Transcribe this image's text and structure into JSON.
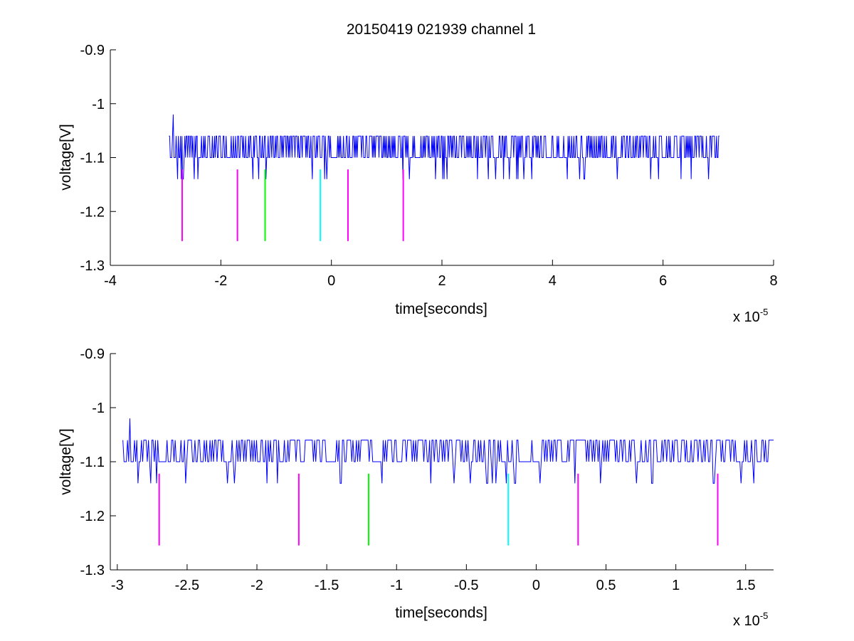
{
  "figure": {
    "title": "20150419 021939 channel 1"
  },
  "colors": {
    "signal": "#0000ff",
    "marker_magenta": "#ff00ff",
    "marker_green": "#00ff00",
    "marker_cyan": "#00ffff",
    "axes": "#000000",
    "background": "#ffffff"
  },
  "chart_data": [
    {
      "type": "line",
      "title": "20150419 021939 channel 1",
      "xlabel": "time[seconds]",
      "ylabel": "voltage[V]",
      "x_exponent_base": "x 10",
      "x_exponent": "-5",
      "xlim": [
        -4,
        8
      ],
      "ylim": [
        -1.3,
        -0.9
      ],
      "yreverse": true,
      "x_ticks": [
        -4,
        -2,
        0,
        2,
        4,
        6,
        8
      ],
      "x_tick_labels": [
        "-4",
        "-2",
        "0",
        "2",
        "4",
        "6",
        "8"
      ],
      "y_ticks": [
        -0.9,
        -1.0,
        -1.1,
        -1.2,
        -1.3
      ],
      "y_tick_labels": [
        "-0.9",
        "-1",
        "-1.1",
        "-1.2",
        "-1.3"
      ],
      "grid": false,
      "legend": "none",
      "series": [
        {
          "color": "#0000ff",
          "x_range": [
            -2.94,
            7.02
          ],
          "levels": [
            -1.06,
            -1.1,
            -1.14
          ],
          "baseline": -1.1,
          "peak_point": [
            -2.9,
            -1.02
          ]
        }
      ],
      "markers": [
        {
          "x": -2.7,
          "y_from": -1.122,
          "y_to": -1.255,
          "color": "#ff00ff"
        },
        {
          "x": -1.7,
          "y_from": -1.122,
          "y_to": -1.255,
          "color": "#ff00ff"
        },
        {
          "x": -1.2,
          "y_from": -1.122,
          "y_to": -1.255,
          "color": "#00ff00"
        },
        {
          "x": -0.2,
          "y_from": -1.122,
          "y_to": -1.255,
          "color": "#00ffff"
        },
        {
          "x": 0.3,
          "y_from": -1.122,
          "y_to": -1.255,
          "color": "#ff00ff"
        },
        {
          "x": 1.3,
          "y_from": -1.122,
          "y_to": -1.255,
          "color": "#ff00ff"
        }
      ]
    },
    {
      "type": "line",
      "title": "",
      "xlabel": "time[seconds]",
      "ylabel": "voltage[V]",
      "x_exponent_base": "x 10",
      "x_exponent": "-5",
      "xlim": [
        -3.05,
        1.7
      ],
      "ylim": [
        -1.3,
        -0.9
      ],
      "yreverse": true,
      "x_ticks": [
        -3,
        -2.5,
        -2,
        -1.5,
        -1,
        -0.5,
        0,
        0.5,
        1,
        1.5
      ],
      "x_tick_labels": [
        "-3",
        "-2.5",
        "-2",
        "-1.5",
        "-1",
        "-0.5",
        "0",
        "0.5",
        "1",
        "1.5"
      ],
      "y_ticks": [
        -0.9,
        -1.0,
        -1.1,
        -1.2,
        -1.3
      ],
      "y_tick_labels": [
        "-0.9",
        "-1",
        "-1.1",
        "-1.2",
        "-1.3"
      ],
      "grid": false,
      "legend": "none",
      "series": [
        {
          "color": "#0000ff",
          "x_range": [
            -2.96,
            1.7
          ],
          "levels": [
            -1.06,
            -1.1,
            -1.14
          ],
          "baseline": -1.1,
          "peak_point": [
            -2.93,
            -1.02
          ]
        }
      ],
      "markers": [
        {
          "x": -2.7,
          "y_from": -1.122,
          "y_to": -1.255,
          "color": "#ff00ff"
        },
        {
          "x": -1.7,
          "y_from": -1.122,
          "y_to": -1.255,
          "color": "#ff00ff"
        },
        {
          "x": -1.2,
          "y_from": -1.122,
          "y_to": -1.255,
          "color": "#00ff00"
        },
        {
          "x": -0.2,
          "y_from": -1.122,
          "y_to": -1.255,
          "color": "#00ffff"
        },
        {
          "x": 0.3,
          "y_from": -1.122,
          "y_to": -1.255,
          "color": "#ff00ff"
        },
        {
          "x": 1.3,
          "y_from": -1.122,
          "y_to": -1.255,
          "color": "#ff00ff"
        }
      ]
    }
  ]
}
